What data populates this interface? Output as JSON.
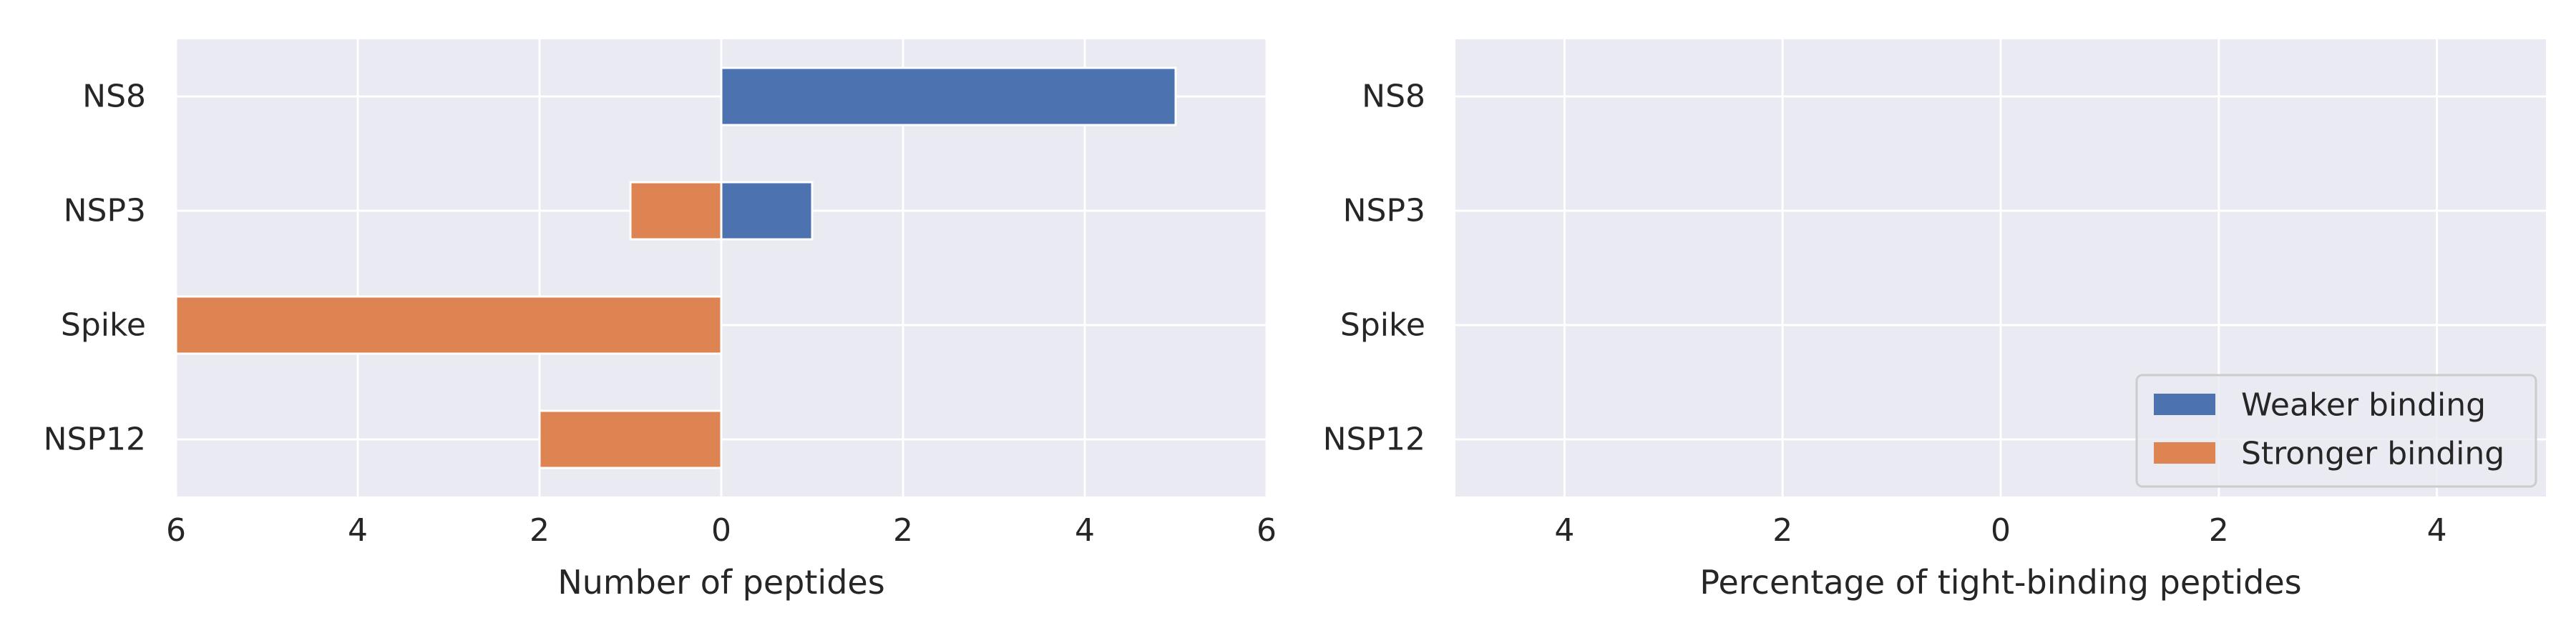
{
  "figure": {
    "background": "#ffffff",
    "plot_background": "#eaeaf2",
    "grid_color": "#ffffff"
  },
  "chart_data": [
    {
      "type": "bar",
      "orientation": "horizontal",
      "title": "",
      "xlabel": "Number of peptides",
      "ylabel": "",
      "categories": [
        "NS8",
        "NSP3",
        "Spike",
        "NSP12"
      ],
      "xlim": [
        -6,
        6
      ],
      "xticks": [
        -6,
        -4,
        -2,
        0,
        2,
        4,
        6
      ],
      "xtick_labels": [
        "6",
        "4",
        "2",
        "0",
        "2",
        "4",
        "6"
      ],
      "grid": true,
      "series": [
        {
          "name": "Weaker binding",
          "color": "#4c72b0",
          "values": [
            5,
            1,
            0,
            0
          ]
        },
        {
          "name": "Stronger binding",
          "color": "#dd8452",
          "values": [
            0,
            1,
            6,
            2
          ],
          "direction": "negative"
        }
      ]
    },
    {
      "type": "bar",
      "orientation": "horizontal",
      "title": "",
      "xlabel": "Percentage of tight-binding peptides",
      "ylabel": "",
      "categories": [
        "NS8",
        "NSP3",
        "Spike",
        "NSP12"
      ],
      "xlim": [
        -5,
        5
      ],
      "xticks": [
        -4,
        -2,
        0,
        2,
        4
      ],
      "xtick_labels": [
        "4",
        "2",
        "0",
        "2",
        "4"
      ],
      "grid": true,
      "legend_position": "lower-right",
      "series": [
        {
          "name": "Weaker binding",
          "color": "#4c72b0",
          "values": [
            0,
            0,
            0,
            0
          ]
        },
        {
          "name": "Stronger binding",
          "color": "#dd8452",
          "values": [
            0,
            0,
            0,
            0
          ],
          "direction": "negative"
        }
      ]
    }
  ]
}
